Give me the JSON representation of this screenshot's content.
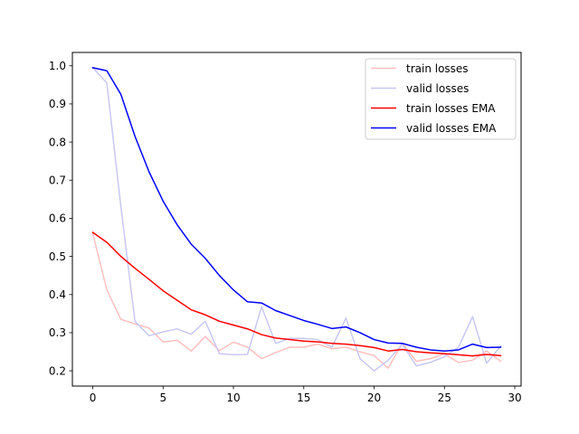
{
  "chart_data": {
    "type": "line",
    "title": "",
    "xlabel": "",
    "ylabel": "",
    "xlim": [
      -1.45,
      30.45
    ],
    "ylim": [
      0.16,
      1.035
    ],
    "xticks": [
      0,
      5,
      10,
      15,
      20,
      25,
      30
    ],
    "yticks": [
      0.2,
      0.3,
      0.4,
      0.5,
      0.6,
      0.7,
      0.8,
      0.9,
      1.0
    ],
    "xtick_labels": [
      "0",
      "5",
      "10",
      "15",
      "20",
      "25",
      "30"
    ],
    "ytick_labels": [
      "0.2",
      "0.3",
      "0.4",
      "0.5",
      "0.6",
      "0.7",
      "0.8",
      "0.9",
      "1.0"
    ],
    "grid": false,
    "legend_position": "top-right",
    "x": [
      0,
      1,
      2,
      3,
      4,
      5,
      6,
      7,
      8,
      9,
      10,
      11,
      12,
      13,
      14,
      15,
      16,
      17,
      18,
      19,
      20,
      21,
      22,
      23,
      24,
      25,
      26,
      27,
      28,
      29
    ],
    "series": [
      {
        "name": "train losses",
        "color": "#ffc0c0",
        "values": [
          0.56,
          0.412,
          0.335,
          0.323,
          0.312,
          0.276,
          0.28,
          0.252,
          0.29,
          0.253,
          0.275,
          0.262,
          0.232,
          0.248,
          0.262,
          0.262,
          0.27,
          0.258,
          0.262,
          0.25,
          0.24,
          0.207,
          0.272,
          0.225,
          0.232,
          0.244,
          0.222,
          0.228,
          0.252,
          0.225
        ]
      },
      {
        "name": "valid losses",
        "color": "#c8c8f2",
        "values": [
          0.995,
          0.955,
          0.63,
          0.33,
          0.292,
          0.302,
          0.31,
          0.296,
          0.33,
          0.245,
          0.242,
          0.243,
          0.368,
          0.272,
          0.285,
          0.285,
          0.282,
          0.262,
          0.338,
          0.232,
          0.2,
          0.228,
          0.27,
          0.213,
          0.222,
          0.237,
          0.262,
          0.342,
          0.22,
          0.265
        ]
      },
      {
        "name": "train losses EMA",
        "color": "#ff0000",
        "values": [
          0.563,
          0.537,
          0.5,
          0.469,
          0.44,
          0.41,
          0.385,
          0.36,
          0.347,
          0.33,
          0.32,
          0.31,
          0.295,
          0.286,
          0.282,
          0.278,
          0.276,
          0.272,
          0.27,
          0.266,
          0.261,
          0.252,
          0.256,
          0.25,
          0.247,
          0.245,
          0.242,
          0.239,
          0.243,
          0.24
        ]
      },
      {
        "name": "valid losses EMA",
        "color": "#0000ff",
        "values": [
          0.995,
          0.987,
          0.925,
          0.815,
          0.722,
          0.645,
          0.583,
          0.532,
          0.495,
          0.45,
          0.412,
          0.381,
          0.378,
          0.358,
          0.345,
          0.332,
          0.322,
          0.311,
          0.315,
          0.3,
          0.282,
          0.273,
          0.272,
          0.262,
          0.255,
          0.252,
          0.255,
          0.27,
          0.261,
          0.262
        ]
      }
    ]
  }
}
